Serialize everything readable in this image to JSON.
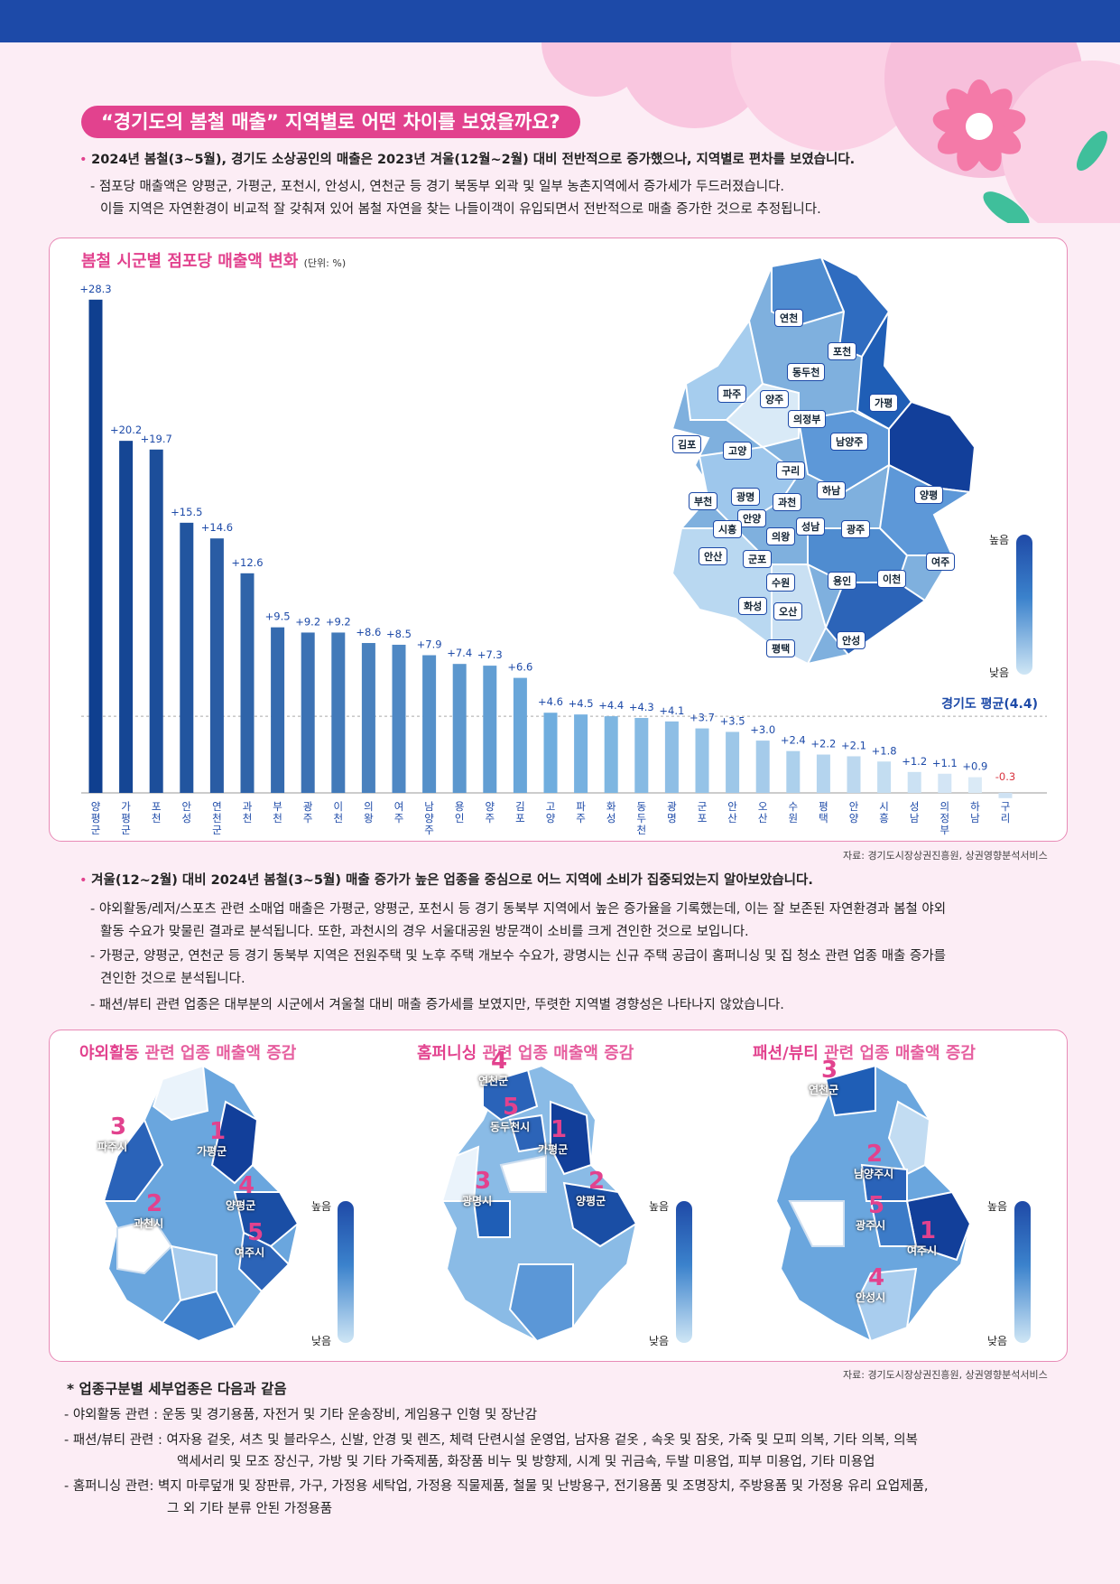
{
  "title_pill": "“경기도의 봄철 매출” 지역별로 어떤 차이를 보였을까요?",
  "intro": {
    "b1": "2024년 봄철(3~5월), 경기도 소상공인의 매출은 2023년 겨울(12월~2월) 대비 전반적으로 증가했으나, 지역별로 편차를 보였습니다.",
    "s1": "- 점포당 매출액은 양평군, 가평군, 포천시, 안성시, 연천군 등 경기 북동부 외곽 및 일부 농촌지역에서 증가세가 두드러졌습니다.",
    "s2": "이들 지역은 자연환경이 비교적 잘 갖춰져 있어 봄철 자연을 찾는 나들이객이 유입되면서 전반적으로 매출 증가한 것으로 추정됩니다."
  },
  "chart_panel": {
    "title": "봄철 시군별 점포당 매출액 변화",
    "unit": "(단위: %)",
    "avg_label": "경기도 평균(4.4)",
    "legend_high": "높음",
    "legend_low": "낮음",
    "source": "자료: 경기도시장상권진흥원, 상권영향분석서비스"
  },
  "chart_data": {
    "type": "bar",
    "title": "봄철 시군별 점포당 매출액 변화",
    "unit": "(단위: %)",
    "categories": [
      "양평군",
      "가평군",
      "포천",
      "안성",
      "연천군",
      "과천",
      "부천",
      "광주",
      "이천",
      "의왕",
      "여주",
      "남양주",
      "용인",
      "양주",
      "김포",
      "고양",
      "파주",
      "화성",
      "동두천",
      "광명",
      "군포",
      "안산",
      "오산",
      "수원",
      "평택",
      "안양",
      "시흥",
      "성남",
      "의정부",
      "하남",
      "구리"
    ],
    "values": [
      28.3,
      20.2,
      19.7,
      15.5,
      14.6,
      12.6,
      9.5,
      9.2,
      9.2,
      8.6,
      8.5,
      7.9,
      7.4,
      7.3,
      6.6,
      4.6,
      4.5,
      4.4,
      4.3,
      4.1,
      3.7,
      3.5,
      3.0,
      2.4,
      2.2,
      2.1,
      1.8,
      1.2,
      1.1,
      0.9,
      -0.3
    ],
    "value_labels": [
      "+28.3",
      "+20.2",
      "+19.7",
      "+15.5",
      "+14.6",
      "+12.6",
      "+9.5",
      "+9.2",
      "+9.2",
      "+8.6",
      "+8.5",
      "+7.9",
      "+7.4",
      "+7.3",
      "+6.6",
      "+4.6",
      "+4.5",
      "+4.4",
      "+4.3",
      "+4.1",
      "+3.7",
      "+3.5",
      "+3.0",
      "+2.4",
      "+2.2",
      "+2.1",
      "+1.8",
      "+1.2",
      "+1.1",
      "+0.9",
      "-0.3"
    ],
    "reference_line": 4.4,
    "ylim": [
      -1,
      30
    ],
    "grid": false
  },
  "map1_labels": [
    "연천",
    "포천",
    "동두천",
    "파주",
    "양주",
    "가평",
    "의정부",
    "김포",
    "고양",
    "남양주",
    "구리",
    "하남",
    "부천",
    "광명",
    "과천",
    "양평",
    "안양",
    "시흥",
    "의왕",
    "성남",
    "광주",
    "안산",
    "군포",
    "여주",
    "수원",
    "용인",
    "이천",
    "화성",
    "오산",
    "안성",
    "평택"
  ],
  "section2": {
    "b1": "겨울(12~2월) 대비 2024년 봄철(3~5월) 매출 증가가 높은 업종을 중심으로 어느 지역에 소비가 집중되었는지 알아보았습니다.",
    "s1a": "- 야외활동/레저/스포츠 관련 소매업 매출은 가평군, 양평군, 포천시 등 경기 동북부 지역에서 높은 증가율을 기록했는데, 이는 잘 보존된 자연환경과 봄철 야외",
    "s1b": "활동 수요가 맞물린 결과로 분석됩니다. 또한, 과천시의 경우 서울대공원 방문객이 소비를 크게 견인한 것으로 보입니다.",
    "s2a": "- 가평군, 양평군, 연천군 등 경기 동북부 지역은 전원주택 및 노후 주택 개보수 수요가, 광명시는 신규 주택 공급이 홈퍼니싱 및 집 청소 관련 업종 매출 증가를",
    "s2b": "견인한 것으로 분석됩니다.",
    "s3": "- 패션/뷰티 관련 업종은 대부분의 시군에서 겨울철 대비 매출 증가세를 보였지만, 뚜렷한 지역별 경향성은 나타나지 않았습니다."
  },
  "maps_panel": {
    "maps": [
      {
        "t1": "야외활동",
        "t2": " 관련 업종 매출액 증감",
        "ranks": [
          {
            "n": "1",
            "name": "가평군"
          },
          {
            "n": "2",
            "name": "과천시"
          },
          {
            "n": "3",
            "name": "파주시"
          },
          {
            "n": "4",
            "name": "양평군"
          },
          {
            "n": "5",
            "name": "여주시"
          }
        ]
      },
      {
        "t1": "홈퍼니싱",
        "t2": " 관련 업종 매출액 증감",
        "ranks": [
          {
            "n": "1",
            "name": "가평군"
          },
          {
            "n": "2",
            "name": "양평군"
          },
          {
            "n": "3",
            "name": "광명시"
          },
          {
            "n": "4",
            "name": "연천군"
          },
          {
            "n": "5",
            "name": "동두천시"
          }
        ]
      },
      {
        "t1": "패션/뷰티",
        "t2": " 관련 업종 매출액 증감",
        "ranks": [
          {
            "n": "1",
            "name": "여주시"
          },
          {
            "n": "2",
            "name": "남양주시"
          },
          {
            "n": "3",
            "name": "연천군"
          },
          {
            "n": "4",
            "name": "안성시"
          },
          {
            "n": "5",
            "name": "광주시"
          }
        ]
      }
    ],
    "legend_high": "높음",
    "legend_low": "낮음",
    "source": "자료: 경기도시장상권진흥원, 상권영향분석서비스"
  },
  "footnote": {
    "title": "* 업종구분별 세부업종은 다음과 같음",
    "l1": "- 야외활동 관련 : 운동 및 경기용품, 자전거 및 기타 운송장비, 게임용구 인형 및 장난감",
    "l2a": "- 패션/뷰티 관련 : 여자용 겉옷, 셔츠 및 블라우스, 신발, 안경 및 렌즈, 체력 단련시설 운영업, 남자용 겉옷 , 속옷 및 잠옷, 가죽 및 모피 의복, 기타 의복, 의복",
    "l2b": "액세서리 및 모조 장신구, 가방 및 기타 가죽제품, 화장품 비누 및 방향제, 시계 및 귀금속, 두발 미용업, 피부 미용업, 기타 미용업",
    "l3a": "- 홈퍼니싱 관련: 벽지 마루덮개 및 장판류, 가구, 가정용 세탁업, 가정용 직물제품, 철물 및 난방용구, 전기용품 및 조명장치, 주방용품 및 가정용 유리 요업제품,",
    "l3b": "그 외 기타 분류 안된 가정용품"
  },
  "colors": {
    "accent": "#e2428e",
    "topbar": "#1d4aa8",
    "bar_dark": "#0f3f8f",
    "bar_light": "#dbeaf6",
    "negative": "#d9333f"
  }
}
